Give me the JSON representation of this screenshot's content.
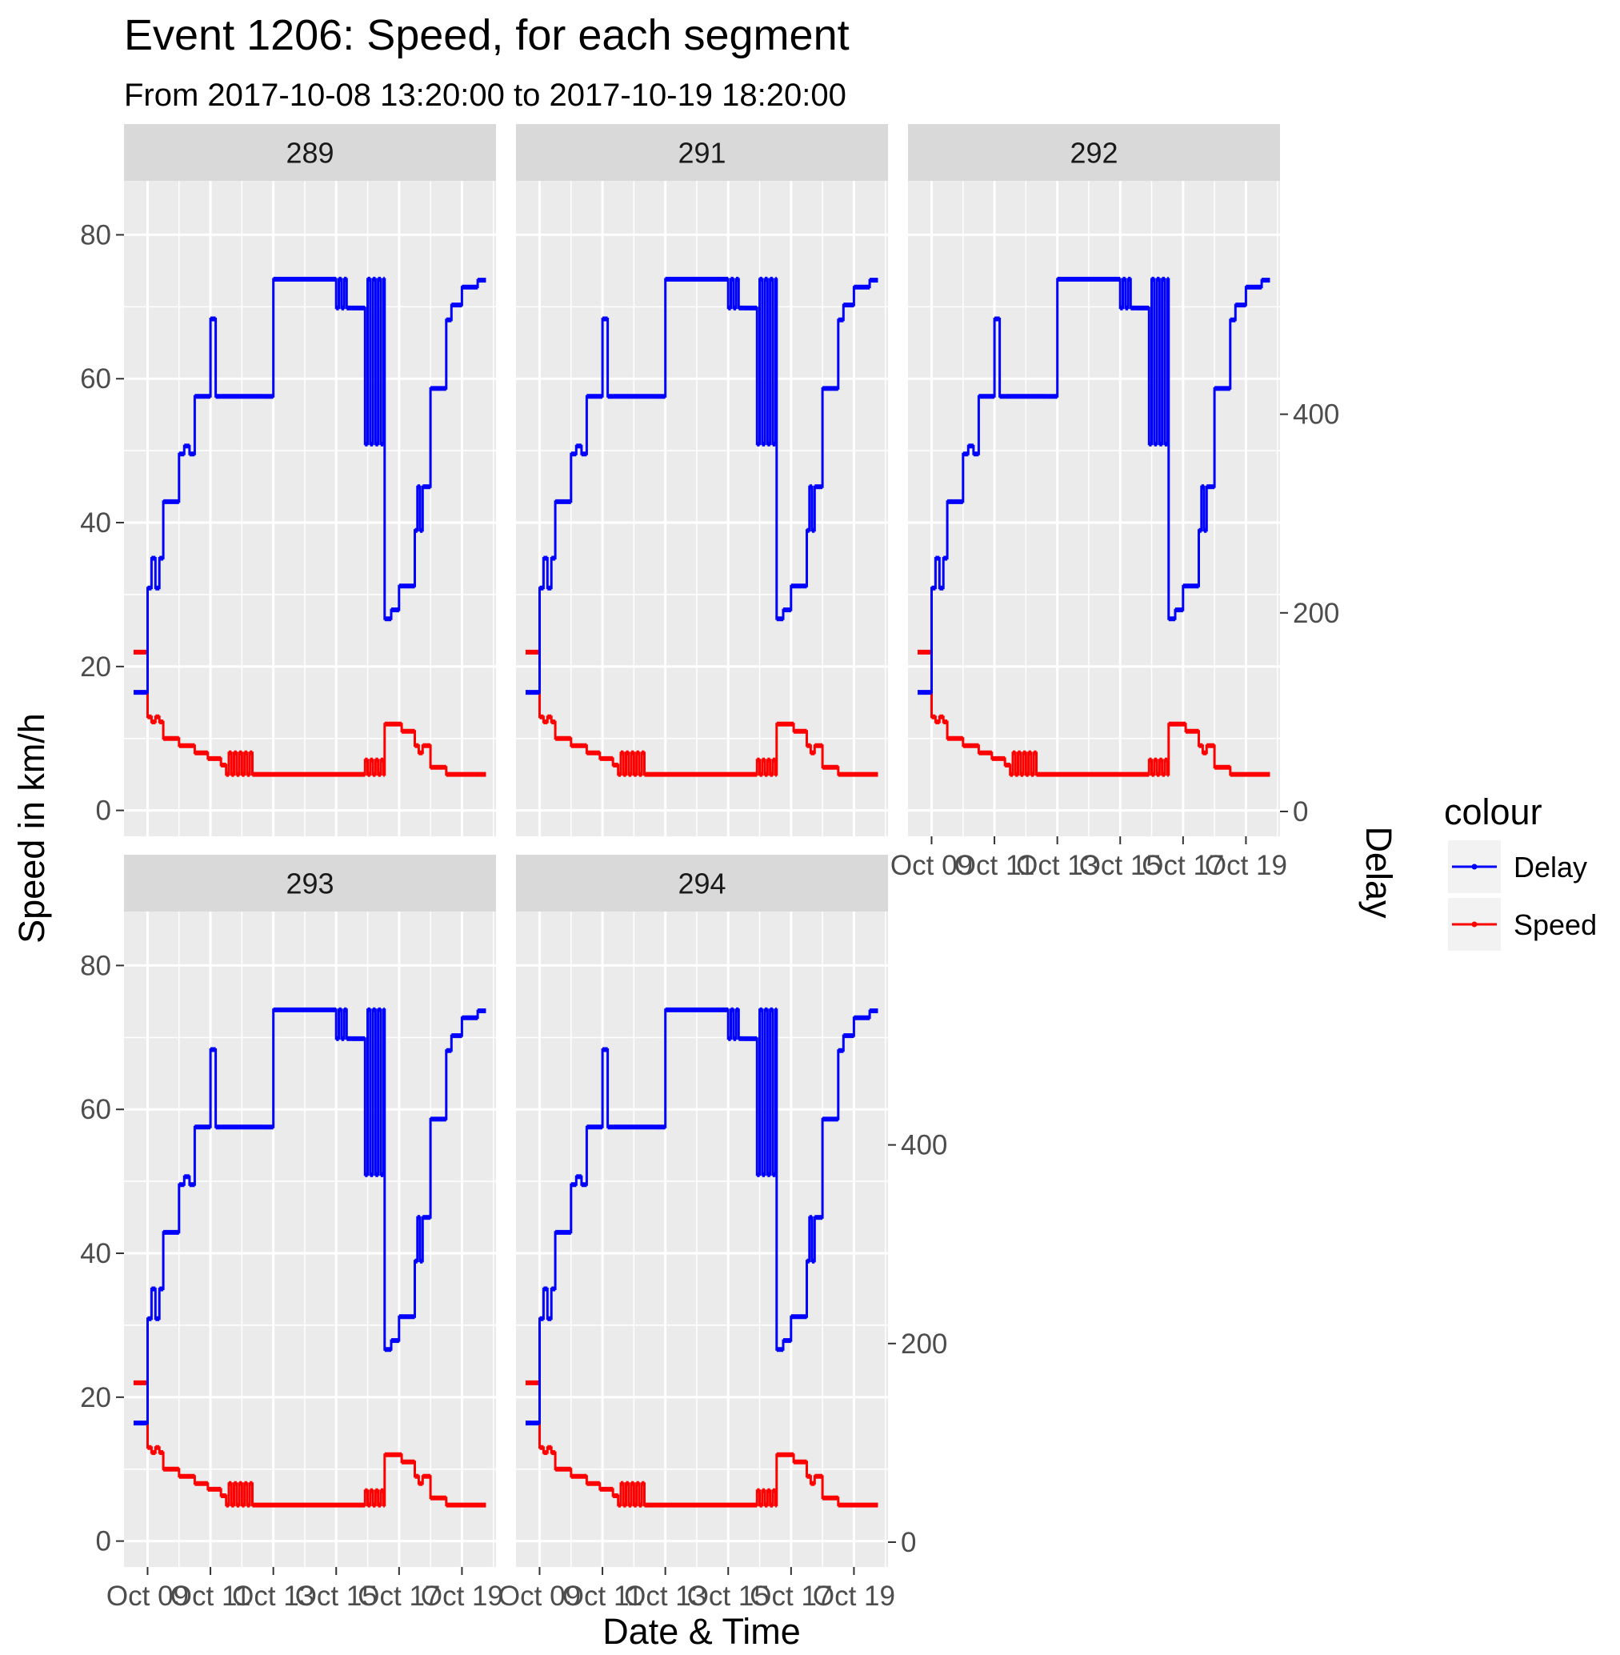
{
  "chart_data": {
    "type": "line",
    "title": "Event 1206: Speed, for each segment",
    "subtitle": "From 2017-10-08 13:20:00 to 2017-10-19 18:20:00",
    "xlabel": "Date & Time",
    "ylabel": "Speed in km/h",
    "y2label": "Delay",
    "ylim": [
      -3.6,
      87.5
    ],
    "y2lim": [
      -25,
      635
    ],
    "y_ticks": [
      "0",
      "20",
      "40",
      "60",
      "80"
    ],
    "y2_ticks": [
      "0",
      "200",
      "400"
    ],
    "xlim": [
      "2017-10-08 06:00",
      "2017-10-20 02:00"
    ],
    "x_ticks": [
      "Oct 09",
      "Oct 11",
      "Oct 13",
      "Oct 15",
      "Oct 17",
      "Oct 19"
    ],
    "x_tick_dates": [
      "2017-10-09",
      "2017-10-11",
      "2017-10-13",
      "2017-10-15",
      "2017-10-17",
      "2017-10-19"
    ],
    "grid": true,
    "legend": {
      "title": "colour",
      "position": "right",
      "entries": [
        {
          "label": "Delay",
          "color": "#0000ff"
        },
        {
          "label": "Speed",
          "color": "#ff0000"
        }
      ]
    },
    "facets": [
      "289",
      "291",
      "292",
      "293",
      "294"
    ],
    "series": [
      {
        "name": "Speed",
        "axis": "left",
        "color": "#ff0000",
        "points": [
          [
            "2017-10-08 13:20",
            22
          ],
          [
            "2017-10-09 00:00",
            13
          ],
          [
            "2017-10-09 03:00",
            12.3
          ],
          [
            "2017-10-09 06:00",
            13
          ],
          [
            "2017-10-09 09:00",
            12.3
          ],
          [
            "2017-10-09 12:00",
            10
          ],
          [
            "2017-10-10 00:00",
            9
          ],
          [
            "2017-10-10 12:00",
            8
          ],
          [
            "2017-10-10 22:00",
            7.2
          ],
          [
            "2017-10-11 08:00",
            6.3
          ],
          [
            "2017-10-11 12:00",
            5
          ],
          [
            "2017-10-11 14:00",
            8
          ],
          [
            "2017-10-11 16:00",
            5
          ],
          [
            "2017-10-11 18:00",
            8
          ],
          [
            "2017-10-11 20:00",
            5
          ],
          [
            "2017-10-11 22:00",
            8
          ],
          [
            "2017-10-12 00:00",
            5
          ],
          [
            "2017-10-12 02:00",
            8
          ],
          [
            "2017-10-12 04:00",
            5
          ],
          [
            "2017-10-12 06:00",
            8
          ],
          [
            "2017-10-12 08:00",
            5
          ],
          [
            "2017-10-15 22:00",
            7
          ],
          [
            "2017-10-16 00:00",
            5
          ],
          [
            "2017-10-16 02:00",
            7
          ],
          [
            "2017-10-16 04:00",
            5
          ],
          [
            "2017-10-16 06:00",
            7
          ],
          [
            "2017-10-16 08:00",
            5
          ],
          [
            "2017-10-16 10:00",
            7
          ],
          [
            "2017-10-16 12:00",
            5
          ],
          [
            "2017-10-16 13:00",
            12
          ],
          [
            "2017-10-17 02:00",
            11
          ],
          [
            "2017-10-17 12:00",
            9
          ],
          [
            "2017-10-17 15:00",
            8
          ],
          [
            "2017-10-17 18:00",
            9
          ],
          [
            "2017-10-18 00:00",
            6
          ],
          [
            "2017-10-18 12:00",
            5
          ],
          [
            "2017-10-19 18:20",
            5
          ]
        ]
      },
      {
        "name": "Delay",
        "axis": "right",
        "color": "#0000ff",
        "points": [
          [
            "2017-10-08 13:20",
            120
          ],
          [
            "2017-10-09 00:00",
            225
          ],
          [
            "2017-10-09 03:00",
            255
          ],
          [
            "2017-10-09 06:00",
            225
          ],
          [
            "2017-10-09 09:00",
            255
          ],
          [
            "2017-10-09 12:00",
            312
          ],
          [
            "2017-10-10 00:00",
            360
          ],
          [
            "2017-10-10 04:00",
            368
          ],
          [
            "2017-10-10 08:00",
            360
          ],
          [
            "2017-10-10 12:00",
            418
          ],
          [
            "2017-10-11 00:00",
            496
          ],
          [
            "2017-10-11 04:00",
            418
          ],
          [
            "2017-10-11 08:00",
            418
          ],
          [
            "2017-10-12 16:00",
            418
          ],
          [
            "2017-10-13 00:00",
            536
          ],
          [
            "2017-10-15 00:00",
            507
          ],
          [
            "2017-10-15 02:00",
            536
          ],
          [
            "2017-10-15 04:00",
            507
          ],
          [
            "2017-10-15 06:00",
            536
          ],
          [
            "2017-10-15 08:00",
            507
          ],
          [
            "2017-10-15 12:00",
            507
          ],
          [
            "2017-10-15 22:00",
            370
          ],
          [
            "2017-10-16 00:00",
            536
          ],
          [
            "2017-10-16 02:00",
            370
          ],
          [
            "2017-10-16 04:00",
            536
          ],
          [
            "2017-10-16 06:00",
            370
          ],
          [
            "2017-10-16 08:00",
            536
          ],
          [
            "2017-10-16 10:00",
            370
          ],
          [
            "2017-10-16 12:00",
            536
          ],
          [
            "2017-10-16 13:00",
            194
          ],
          [
            "2017-10-16 18:00",
            203
          ],
          [
            "2017-10-17 00:00",
            227
          ],
          [
            "2017-10-17 12:00",
            283
          ],
          [
            "2017-10-17 14:00",
            327
          ],
          [
            "2017-10-17 16:00",
            283
          ],
          [
            "2017-10-17 18:00",
            327
          ],
          [
            "2017-10-18 00:00",
            426
          ],
          [
            "2017-10-18 12:00",
            495
          ],
          [
            "2017-10-18 16:00",
            510
          ],
          [
            "2017-10-19 00:00",
            528
          ],
          [
            "2017-10-19 12:00",
            535
          ],
          [
            "2017-10-19 18:20",
            535
          ]
        ]
      }
    ]
  }
}
